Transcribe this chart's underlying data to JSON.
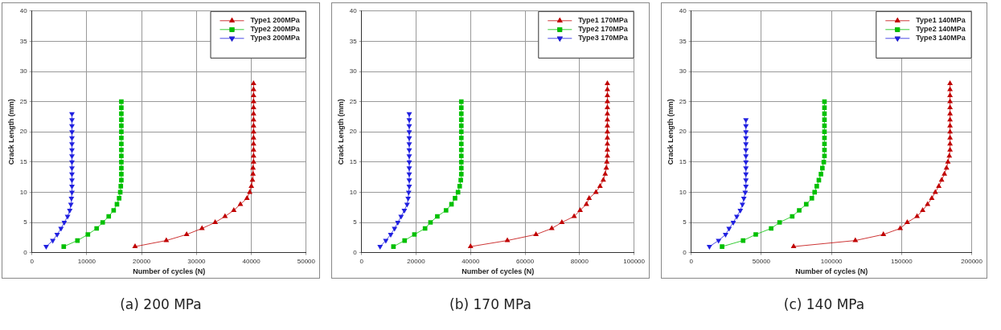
{
  "chart_data": [
    {
      "type": "line",
      "title": "(a) 200 MPa",
      "xlabel": "Number of cycles (N)",
      "ylabel": "Crack Length (mm)",
      "xlim": [
        0,
        50000
      ],
      "xticks": [
        0,
        10000,
        20000,
        30000,
        40000,
        50000
      ],
      "ylim": [
        0,
        40
      ],
      "yticks": [
        0,
        5,
        10,
        15,
        20,
        25,
        30,
        35,
        40
      ],
      "grid": true,
      "legend": "top right",
      "line_style": "solid",
      "series": [
        {
          "name": "Type1 200MPa",
          "color": "#c00000",
          "marker": "triangle",
          "x": [
            18800,
            24500,
            28200,
            31000,
            33400,
            35200,
            36800,
            38000,
            39200,
            39700,
            40000,
            40200,
            40300,
            40300,
            40400,
            40400,
            40400,
            40400,
            40400,
            40400,
            40400,
            40400,
            40400,
            40400,
            40400,
            40400,
            40400,
            40400
          ],
          "values": [
            1,
            2,
            3,
            4,
            5,
            6,
            7,
            8,
            9,
            10,
            11,
            12,
            13,
            14,
            15,
            16,
            17,
            18,
            19,
            20,
            21,
            22,
            23,
            24,
            25,
            26,
            27,
            28
          ]
        },
        {
          "name": "Type2 200MPa",
          "color": "#00c000",
          "marker": "square",
          "x": [
            5800,
            8300,
            10200,
            11800,
            12900,
            14000,
            14900,
            15500,
            15900,
            16100,
            16200,
            16300,
            16300,
            16300,
            16300,
            16300,
            16300,
            16300,
            16300,
            16300,
            16300,
            16300,
            16300,
            16300,
            16300
          ],
          "values": [
            1,
            2,
            3,
            4,
            5,
            6,
            7,
            8,
            9,
            10,
            11,
            12,
            13,
            14,
            15,
            16,
            17,
            18,
            19,
            20,
            21,
            22,
            23,
            24,
            25
          ]
        },
        {
          "name": "Type3 200MPa",
          "color": "#2020e0",
          "marker": "triangle-down",
          "x": [
            2600,
            3800,
            4600,
            5300,
            5900,
            6500,
            6900,
            7100,
            7200,
            7300,
            7300,
            7300,
            7300,
            7300,
            7300,
            7300,
            7300,
            7300,
            7300,
            7300,
            7300,
            7300,
            7300
          ],
          "values": [
            1,
            2,
            3,
            4,
            5,
            6,
            7,
            8,
            9,
            10,
            11,
            12,
            13,
            14,
            15,
            16,
            17,
            18,
            19,
            20,
            21,
            22,
            23
          ]
        }
      ]
    },
    {
      "type": "line",
      "title": "(b) 170 MPa",
      "xlabel": "Number of cycles (N)",
      "ylabel": "Crack Length (mm)",
      "xlim": [
        0,
        100000
      ],
      "xticks": [
        0,
        20000,
        40000,
        60000,
        80000,
        100000
      ],
      "ylim": [
        0,
        40
      ],
      "yticks": [
        0,
        5,
        10,
        15,
        20,
        25,
        30,
        35,
        40
      ],
      "grid": true,
      "legend": "top right",
      "line_style": "solid",
      "series": [
        {
          "name": "Type1 170MPa",
          "color": "#c00000",
          "marker": "triangle",
          "x": [
            40000,
            53500,
            64000,
            69800,
            73500,
            78000,
            80200,
            82500,
            83500,
            86000,
            87500,
            88700,
            89400,
            89800,
            90000,
            90200,
            90200,
            90200,
            90200,
            90200,
            90200,
            90200,
            90200,
            90200,
            90200,
            90200,
            90200,
            90200
          ],
          "values": [
            1,
            2,
            3,
            4,
            5,
            6,
            7,
            8,
            9,
            10,
            11,
            12,
            13,
            14,
            15,
            16,
            17,
            18,
            19,
            20,
            21,
            22,
            23,
            24,
            25,
            26,
            27,
            28
          ]
        },
        {
          "name": "Type2 170MPa",
          "color": "#00c000",
          "marker": "square",
          "x": [
            11700,
            15800,
            19400,
            23300,
            25300,
            27800,
            31000,
            33000,
            34300,
            35400,
            36000,
            36400,
            36600,
            36600,
            36600,
            36600,
            36600,
            36600,
            36600,
            36600,
            36600,
            36600,
            36600,
            36600,
            36600
          ],
          "values": [
            1,
            2,
            3,
            4,
            5,
            6,
            7,
            8,
            9,
            10,
            11,
            12,
            13,
            14,
            15,
            16,
            17,
            18,
            19,
            20,
            21,
            22,
            23,
            24,
            25
          ]
        },
        {
          "name": "Type3 170MPa",
          "color": "#2020e0",
          "marker": "triangle-down",
          "x": [
            6800,
            8900,
            10700,
            12100,
            13300,
            14500,
            15700,
            16700,
            17100,
            17300,
            17500,
            17500,
            17500,
            17500,
            17500,
            17500,
            17500,
            17500,
            17500,
            17500,
            17500,
            17500,
            17500
          ],
          "values": [
            1,
            2,
            3,
            4,
            5,
            6,
            7,
            8,
            9,
            10,
            11,
            12,
            13,
            14,
            15,
            16,
            17,
            18,
            19,
            20,
            21,
            22,
            23
          ]
        }
      ]
    },
    {
      "type": "line",
      "title": "(c) 140 MPa",
      "xlabel": "Number of cycles (N)",
      "ylabel": "Crack Length (mm)",
      "xlim": [
        0,
        200000
      ],
      "xticks": [
        0,
        50000,
        100000,
        150000,
        200000
      ],
      "ylim": [
        0,
        40
      ],
      "yticks": [
        0,
        5,
        10,
        15,
        20,
        25,
        30,
        35,
        40
      ],
      "grid": true,
      "legend": "top right",
      "line_style": "solid",
      "series": [
        {
          "name": "Type1 140MPa",
          "color": "#c00000",
          "marker": "triangle",
          "x": [
            73000,
            117000,
            137000,
            149000,
            154000,
            161000,
            165000,
            168500,
            171500,
            174000,
            176500,
            178500,
            180500,
            182000,
            183000,
            184000,
            184500,
            184500,
            184500,
            184500,
            184500,
            184500,
            184500,
            184500,
            184500,
            184500,
            184500,
            184500
          ],
          "values": [
            1,
            2,
            3,
            4,
            5,
            6,
            7,
            8,
            9,
            10,
            11,
            12,
            13,
            14,
            15,
            16,
            17,
            18,
            19,
            20,
            21,
            22,
            23,
            24,
            25,
            26,
            27,
            28
          ]
        },
        {
          "name": "Type2 140MPa",
          "color": "#00c000",
          "marker": "square",
          "x": [
            22000,
            37000,
            46000,
            57000,
            63000,
            72000,
            77000,
            82000,
            86000,
            88000,
            89500,
            91000,
            92500,
            93500,
            94500,
            95000,
            95000,
            95000,
            95000,
            95000,
            95000,
            95000,
            95000,
            95000,
            95000
          ],
          "values": [
            1,
            2,
            3,
            4,
            5,
            6,
            7,
            8,
            9,
            10,
            11,
            12,
            13,
            14,
            15,
            16,
            17,
            18,
            19,
            20,
            21,
            22,
            23,
            24,
            25
          ]
        },
        {
          "name": "Type3 140MPa",
          "color": "#2020e0",
          "marker": "triangle-down",
          "x": [
            13000,
            19500,
            24500,
            27000,
            30000,
            32500,
            35000,
            36500,
            37500,
            38500,
            39000,
            39000,
            39000,
            39000,
            39000,
            39000,
            39000,
            39000,
            39000,
            39000,
            39000,
            39000
          ],
          "values": [
            1,
            2,
            3,
            4,
            5,
            6,
            7,
            8,
            9,
            10,
            11,
            12,
            13,
            14,
            15,
            16,
            17,
            18,
            19,
            20,
            21,
            22
          ]
        }
      ]
    }
  ]
}
